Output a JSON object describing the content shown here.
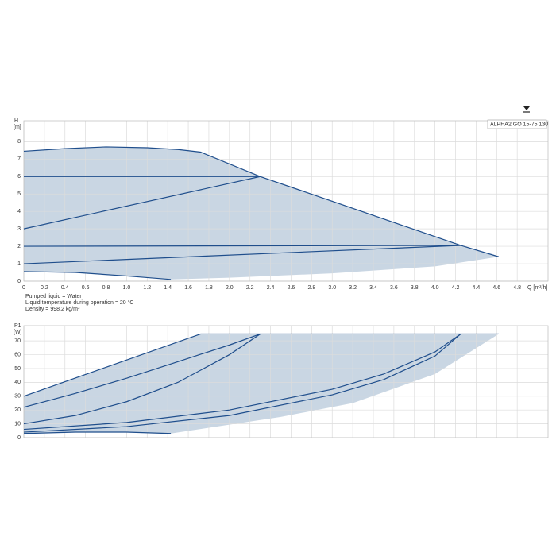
{
  "chart_data": [
    {
      "type": "line",
      "y_label": "H",
      "y_unit": "[m]",
      "x_label": "Q [m³/h]",
      "label": "ALPHA2 GO 15-75 130",
      "notes": [
        "Pumped liquid = Water",
        "Liquid temperature during operation = 20 °C",
        "Density = 998.2 kg/m³"
      ],
      "xlim": [
        0,
        5.1
      ],
      "ylim": [
        0,
        9.2
      ],
      "grid": true,
      "xticks": [
        0,
        0.2,
        0.4,
        0.6,
        0.8,
        {
          "value": 1,
          "label": "1.0"
        },
        1.2,
        1.4,
        1.6,
        1.8,
        {
          "value": 2,
          "label": "2.0"
        },
        2.2,
        2.4,
        2.6,
        2.8,
        {
          "value": 3,
          "label": "3.0"
        },
        3.2,
        3.4,
        3.6,
        3.8,
        {
          "value": 4,
          "label": "4.0"
        },
        4.2,
        4.4,
        4.6,
        4.8
      ],
      "yticks": [
        0,
        1,
        2,
        3,
        4,
        5,
        6,
        7,
        8
      ],
      "region": {
        "color": "#c9d6e3",
        "x": [
          0,
          0.4,
          0.8,
          1.2,
          1.5,
          1.72,
          2.3,
          4.25,
          4.62,
          4.0,
          3.0,
          2.0,
          1.43,
          1.0,
          0.5,
          0
        ],
        "values": [
          7.45,
          7.6,
          7.7,
          7.65,
          7.55,
          7.4,
          6.0,
          2.05,
          1.4,
          0.85,
          0.45,
          0.2,
          0.1,
          0.3,
          0.5,
          0.55
        ]
      },
      "series": [
        {
          "color": "#1f4e8c",
          "x": [
            0,
            0.4,
            0.8,
            1.2,
            1.5,
            1.72,
            2.3,
            4.25,
            4.62
          ],
          "values": [
            7.45,
            7.6,
            7.7,
            7.65,
            7.55,
            7.4,
            6.0,
            2.05,
            1.4
          ]
        },
        {
          "color": "#1f4e8c",
          "x": [
            0,
            2.3
          ],
          "values": [
            6,
            6
          ]
        },
        {
          "color": "#1f4e8c",
          "x": [
            0,
            2.3
          ],
          "values": [
            3,
            6
          ]
        },
        {
          "color": "#1f4e8c",
          "x": [
            0,
            4.25
          ],
          "values": [
            2,
            2.05
          ]
        },
        {
          "color": "#1f4e8c",
          "x": [
            0,
            4.25
          ],
          "values": [
            1,
            2.05
          ]
        },
        {
          "color": "#1f4e8c",
          "x": [
            0,
            0.5,
            1.0,
            1.43
          ],
          "values": [
            0.55,
            0.5,
            0.3,
            0.1
          ]
        }
      ]
    },
    {
      "type": "line",
      "y_label": "P1",
      "y_unit": "[W]",
      "xlim": [
        0,
        5.1
      ],
      "ylim": [
        0,
        81
      ],
      "grid": true,
      "xticks": [
        0,
        0.2,
        0.4,
        0.6,
        0.8,
        1,
        1.2,
        1.4,
        1.6,
        1.8,
        2,
        2.2,
        2.4,
        2.6,
        2.8,
        3,
        3.2,
        3.4,
        3.6,
        3.8,
        4,
        4.2,
        4.4,
        4.6,
        4.8
      ],
      "yticks": [
        0,
        10,
        20,
        30,
        40,
        50,
        60,
        70
      ],
      "region": {
        "color": "#c9d6e3",
        "x": [
          0,
          1.72,
          4.62,
          4.0,
          3.2,
          2.5,
          1.43,
          1.0,
          0.5,
          0
        ],
        "values": [
          30,
          75,
          75,
          46,
          25,
          15,
          3,
          4,
          4,
          3
        ]
      },
      "series": [
        {
          "color": "#1f4e8c",
          "x": [
            0,
            1.72,
            4.62
          ],
          "values": [
            30,
            75,
            75
          ]
        },
        {
          "color": "#1f4e8c",
          "x": [
            0,
            0.5,
            1.0,
            1.5,
            2.0,
            2.3
          ],
          "values": [
            22,
            32,
            43,
            55,
            67,
            75
          ]
        },
        {
          "color": "#1f4e8c",
          "x": [
            0,
            0.5,
            1.0,
            1.5,
            2.0,
            2.3
          ],
          "values": [
            10,
            16,
            26,
            40,
            60,
            75
          ]
        },
        {
          "color": "#1f4e8c",
          "x": [
            0,
            1,
            2,
            3,
            3.5,
            4,
            4.25
          ],
          "values": [
            6,
            11,
            20,
            35,
            46,
            62,
            75
          ]
        },
        {
          "color": "#1f4e8c",
          "x": [
            0,
            1,
            2,
            3,
            3.5,
            4,
            4.25
          ],
          "values": [
            4,
            8,
            16,
            31,
            42,
            59,
            75
          ]
        },
        {
          "color": "#1f4e8c",
          "x": [
            0,
            0.5,
            1.0,
            1.43
          ],
          "values": [
            3,
            4,
            4,
            3
          ]
        }
      ]
    }
  ]
}
